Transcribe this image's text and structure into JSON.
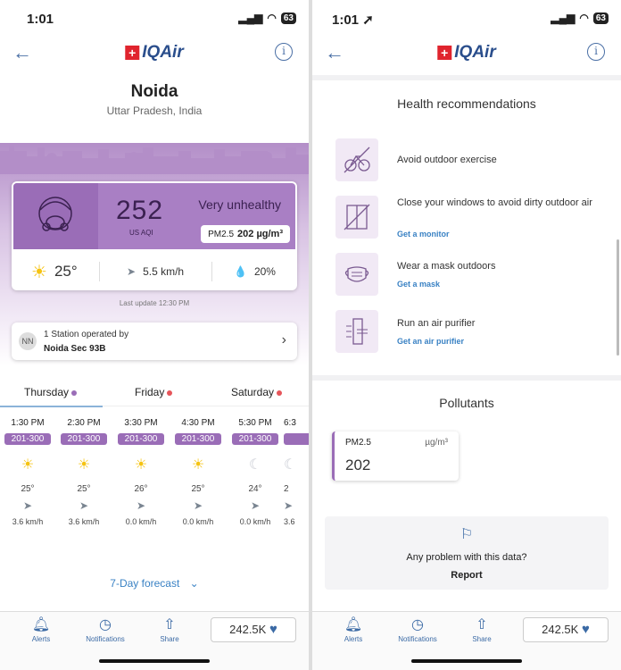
{
  "status_left": {
    "time": "1:01",
    "battery": "63"
  },
  "status_right": {
    "time": "1:01 ➚",
    "battery": "63"
  },
  "brand": {
    "logo_text": "IQAir"
  },
  "location": {
    "city": "Noida",
    "region": "Uttar Pradesh, India"
  },
  "aqi": {
    "value": "252",
    "unit": "US AQI",
    "status": "Very unhealthy",
    "pollutant_label": "PM2.5",
    "pollutant_value": "202 µg/m³"
  },
  "weather": {
    "temp": "25°",
    "wind": "5.5 km/h",
    "humidity": "20%"
  },
  "last_update": "Last update 12:30 PM",
  "station": {
    "initials": "NN",
    "line1": "1 Station operated by",
    "name": "Noida Sec 93B"
  },
  "day_tabs": [
    {
      "label": "Thursday",
      "dot_color": "#9a6db7"
    },
    {
      "label": "Friday",
      "dot_color": "#e6555a"
    },
    {
      "label": "Saturday",
      "dot_color": "#e6555a"
    }
  ],
  "hourly": [
    {
      "time": "1:30 PM",
      "badge": "201-300",
      "icon": "sun-icon",
      "temp": "25°",
      "wind": "3.6 km/h"
    },
    {
      "time": "2:30 PM",
      "badge": "201-300",
      "icon": "sun-icon",
      "temp": "25°",
      "wind": "3.6 km/h"
    },
    {
      "time": "3:30 PM",
      "badge": "201-300",
      "icon": "sun-icon",
      "temp": "26°",
      "wind": "0.0 km/h"
    },
    {
      "time": "4:30 PM",
      "badge": "201-300",
      "icon": "sun-icon",
      "temp": "25°",
      "wind": "0.0 km/h"
    },
    {
      "time": "5:30 PM",
      "badge": "201-300",
      "icon": "moon-icon",
      "temp": "24°",
      "wind": "0.0 km/h"
    },
    {
      "time": "6:3",
      "badge": "",
      "icon": "moon-icon",
      "temp": "2",
      "wind": "3.6"
    }
  ],
  "forecast_link": "7-Day forecast",
  "nav": {
    "alerts": "Alerts",
    "notifications": "Notifications",
    "share": "Share",
    "likes": "242.5K"
  },
  "health": {
    "title": "Health recommendations",
    "items": [
      {
        "text": "Avoid outdoor exercise",
        "link": ""
      },
      {
        "text": "Close your windows to avoid dirty outdoor air",
        "link": "Get a monitor"
      },
      {
        "text": "Wear a mask outdoors",
        "link": "Get a mask"
      },
      {
        "text": "Run an air purifier",
        "link": "Get an air purifier"
      }
    ]
  },
  "pollutants": {
    "title": "Pollutants",
    "name": "PM2.5",
    "unit": "µg/m³",
    "value": "202"
  },
  "problem": {
    "question": "Any problem with this data?",
    "report": "Report"
  }
}
